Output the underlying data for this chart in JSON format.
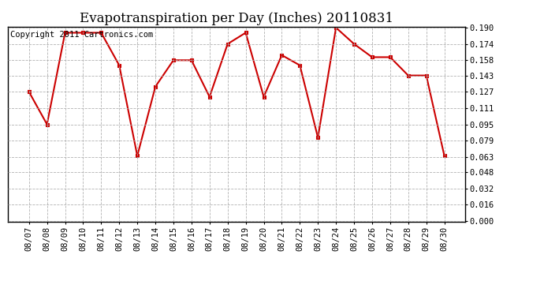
{
  "title": "Evapotranspiration per Day (Inches) 20110831",
  "copyright_text": "Copyright 2011 Cartronics.com",
  "dates": [
    "08/07",
    "08/08",
    "08/09",
    "08/10",
    "08/11",
    "08/12",
    "08/13",
    "08/14",
    "08/15",
    "08/16",
    "08/17",
    "08/18",
    "08/19",
    "08/20",
    "08/21",
    "08/22",
    "08/23",
    "08/24",
    "08/25",
    "08/26",
    "08/27",
    "08/28",
    "08/29",
    "08/30"
  ],
  "values": [
    0.127,
    0.095,
    0.185,
    0.185,
    0.185,
    0.153,
    0.064,
    0.132,
    0.158,
    0.158,
    0.122,
    0.174,
    0.185,
    0.122,
    0.163,
    0.153,
    0.082,
    0.19,
    0.174,
    0.161,
    0.161,
    0.143,
    0.143,
    0.064
  ],
  "line_color": "#cc0000",
  "marker_color": "#cc0000",
  "bg_color": "#ffffff",
  "grid_color": "#aaaaaa",
  "ylim_min": 0.0,
  "ylim_max": 0.19,
  "ytick_step": 0.016,
  "yticks": [
    0.0,
    0.016,
    0.032,
    0.048,
    0.063,
    0.079,
    0.095,
    0.111,
    0.127,
    0.143,
    0.158,
    0.174,
    0.19
  ],
  "ytick_labels": [
    "0.000",
    "0.016",
    "0.032",
    "0.048",
    "0.063",
    "0.079",
    "0.095",
    "0.111",
    "0.127",
    "0.143",
    "0.158",
    "0.174",
    "0.190"
  ],
  "title_fontsize": 12,
  "copyright_fontsize": 7.5
}
